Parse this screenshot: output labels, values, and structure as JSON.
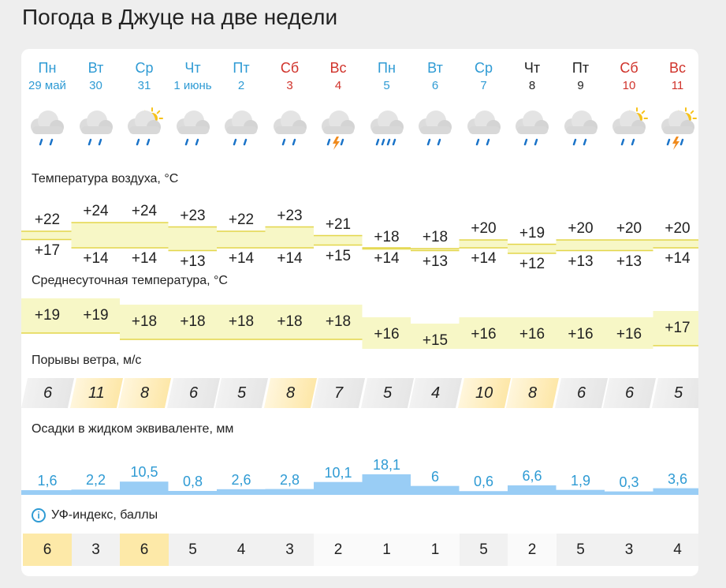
{
  "page_title": "Погода в Джуце на две недели",
  "days": [
    {
      "dow": "Пн",
      "date": "29 май",
      "color": "blue",
      "icon": "cloud-rain-icon",
      "tmax": "+22",
      "tmin": "+17",
      "tavg": "+19",
      "gust": "6",
      "precip": "1,6",
      "uv": "6"
    },
    {
      "dow": "Вт",
      "date": "30",
      "color": "blue",
      "icon": "cloud-rain-icon",
      "tmax": "+24",
      "tmin": "+14",
      "tavg": "+19",
      "gust": "11",
      "precip": "2,2",
      "uv": "3"
    },
    {
      "dow": "Ср",
      "date": "31",
      "color": "blue",
      "icon": "sun-cloud-rain-icon",
      "tmax": "+24",
      "tmin": "+14",
      "tavg": "+18",
      "gust": "8",
      "precip": "10,5",
      "uv": "6"
    },
    {
      "dow": "Чт",
      "date": "1 июнь",
      "color": "blue",
      "icon": "cloud-rain-icon",
      "tmax": "+23",
      "tmin": "+13",
      "tavg": "+18",
      "gust": "6",
      "precip": "0,8",
      "uv": "5"
    },
    {
      "dow": "Пт",
      "date": "2",
      "color": "blue",
      "icon": "cloud-rain-icon",
      "tmax": "+22",
      "tmin": "+14",
      "tavg": "+18",
      "gust": "5",
      "precip": "2,6",
      "uv": "4"
    },
    {
      "dow": "Сб",
      "date": "3",
      "color": "red",
      "icon": "cloud-rain-icon",
      "tmax": "+23",
      "tmin": "+14",
      "tavg": "+18",
      "gust": "8",
      "precip": "2,8",
      "uv": "3"
    },
    {
      "dow": "Вс",
      "date": "4",
      "color": "red",
      "icon": "cloud-thunder-rain-icon",
      "tmax": "+21",
      "tmin": "+15",
      "tavg": "+18",
      "gust": "7",
      "precip": "10,1",
      "uv": "2"
    },
    {
      "dow": "Пн",
      "date": "5",
      "color": "blue",
      "icon": "cloud-heavy-rain-icon",
      "tmax": "+18",
      "tmin": "+14",
      "tavg": "+16",
      "gust": "5",
      "precip": "18,1",
      "uv": "1"
    },
    {
      "dow": "Вт",
      "date": "6",
      "color": "blue",
      "icon": "cloud-rain-icon",
      "tmax": "+18",
      "tmin": "+13",
      "tavg": "+15",
      "gust": "4",
      "precip": "6",
      "uv": "1"
    },
    {
      "dow": "Ср",
      "date": "7",
      "color": "blue",
      "icon": "cloud-rain-icon",
      "tmax": "+20",
      "tmin": "+14",
      "tavg": "+16",
      "gust": "10",
      "precip": "0,6",
      "uv": "5"
    },
    {
      "dow": "Чт",
      "date": "8",
      "color": "black",
      "icon": "cloud-rain-icon",
      "tmax": "+19",
      "tmin": "+12",
      "tavg": "+16",
      "gust": "8",
      "precip": "6,6",
      "uv": "2"
    },
    {
      "dow": "Пт",
      "date": "9",
      "color": "black",
      "icon": "cloud-rain-icon",
      "tmax": "+20",
      "tmin": "+13",
      "tavg": "+16",
      "gust": "6",
      "precip": "1,9",
      "uv": "5"
    },
    {
      "dow": "Сб",
      "date": "10",
      "color": "red",
      "icon": "sun-cloud-rain-icon",
      "tmax": "+20",
      "tmin": "+13",
      "tavg": "+16",
      "gust": "6",
      "precip": "0,3",
      "uv": "3"
    },
    {
      "dow": "Вс",
      "date": "11",
      "color": "red",
      "icon": "sun-cloud-thunder-rain-icon",
      "tmax": "+20",
      "tmin": "+14",
      "tavg": "+17",
      "gust": "5",
      "precip": "3,6",
      "uv": "4"
    }
  ],
  "sections": {
    "air_temp": "Температура воздуха, °C",
    "avg_temp": "Среднесуточная температура, °C",
    "gusts": "Порывы ветра, м/с",
    "precip": "Осадки в жидком эквиваленте, мм",
    "uv": "УФ-индекс, баллы"
  },
  "colors": {
    "weekday": "#2f9bd4",
    "weekend": "#d0332b",
    "temp_band": "#f7f7c6",
    "temp_line": "#e3d64a",
    "precip_fill": "#99cdf5",
    "gust_high": "#fde7a8",
    "uv_high": "#fde9a8"
  }
}
